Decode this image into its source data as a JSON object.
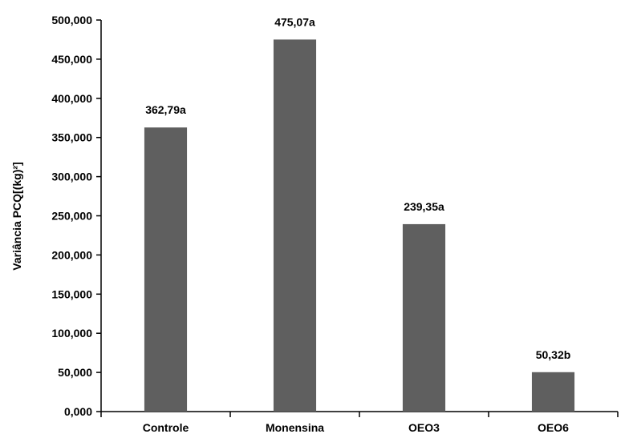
{
  "chart_data": {
    "type": "bar",
    "categories": [
      "Controle",
      "Monensina",
      "OEO3",
      "OEO6"
    ],
    "values": [
      362.79,
      475.07,
      239.35,
      50.32
    ],
    "data_labels": [
      "362,79a",
      "475,07a",
      "239,35a",
      "50,32b"
    ],
    "ylabel": "Variância PCQ[(kg)²]",
    "xlabel": "",
    "ylim": [
      0,
      500
    ],
    "yticks": [
      0,
      50,
      100,
      150,
      200,
      250,
      300,
      350,
      400,
      450,
      500
    ],
    "ytick_labels": [
      "0,000",
      "50,000",
      "100,000",
      "150,000",
      "200,000",
      "250,000",
      "300,000",
      "350,000",
      "400,000",
      "450,000",
      "500,000"
    ],
    "grid": false,
    "legend": "none",
    "bar_color": "#5f5f5f"
  }
}
